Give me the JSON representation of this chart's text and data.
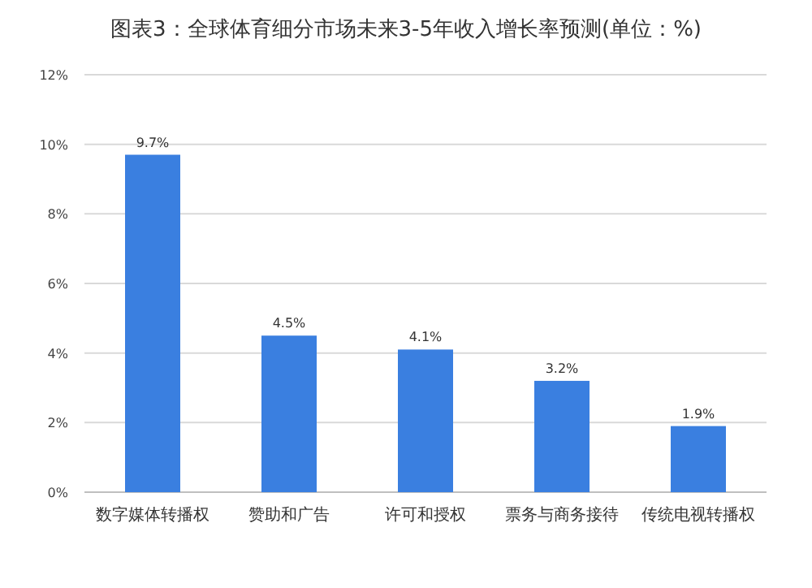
{
  "chart_data": {
    "type": "bar",
    "title": "图表3：全球体育细分市场未来3-5年收入增长率预测(单位：%)",
    "categories": [
      "数字媒体转播权",
      "赞助和广告",
      "许可和授权",
      "票务与商务接待",
      "传统电视转播权"
    ],
    "values": [
      9.7,
      4.5,
      4.1,
      3.2,
      1.9
    ],
    "value_labels": [
      "9.7%",
      "4.5%",
      "4.1%",
      "3.2%",
      "1.9%"
    ],
    "color": "#3a7fe0",
    "ylim": [
      0,
      12
    ],
    "yticks": [
      {
        "value": 0,
        "label": "0%"
      },
      {
        "value": 2,
        "label": "2%"
      },
      {
        "value": 4,
        "label": "4%"
      },
      {
        "value": 6,
        "label": "6%"
      },
      {
        "value": 8,
        "label": "8%"
      },
      {
        "value": 10,
        "label": "10%"
      },
      {
        "value": 12,
        "label": "12%"
      }
    ],
    "grid": "y"
  }
}
